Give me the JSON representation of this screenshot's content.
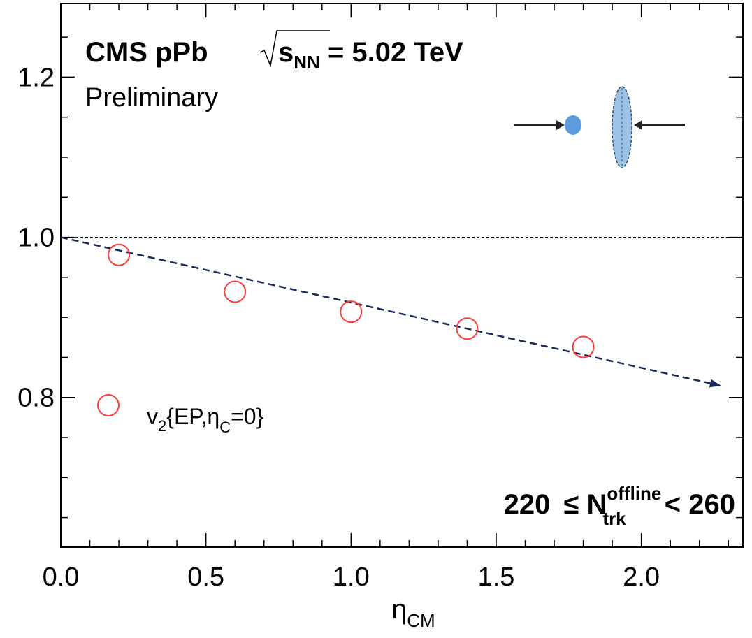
{
  "chart_data": {
    "type": "scatter",
    "title_parts": [
      "CMS pPb",
      "s",
      "NN",
      "= 5.02 TeV"
    ],
    "subtitle": "Preliminary",
    "xlabel_parts": [
      "η",
      "CM"
    ],
    "annotation_parts": [
      "220",
      "≤ N",
      "offline",
      "trk",
      "< 260"
    ],
    "series": [
      {
        "name_parts": [
          "v",
          "2",
          "{EP,η",
          "C",
          "=0}"
        ],
        "color": "#ff3b3b",
        "x": [
          0.2,
          0.6,
          1.0,
          1.4,
          1.8
        ],
        "values": [
          0.978,
          0.932,
          0.907,
          0.886,
          0.863
        ]
      }
    ],
    "reference_line": 1.0,
    "trend_arrow": {
      "color": "#1a2a5a",
      "x": [
        0.0,
        2.27
      ],
      "y": [
        1.0,
        0.815
      ]
    },
    "xlim": [
      0.0,
      2.35
    ],
    "ylim": [
      0.613,
      1.292
    ],
    "xticks": [
      {
        "value": 0,
        "label": "0.0"
      },
      0.5,
      {
        "value": 1,
        "label": "1.0"
      },
      1.5,
      {
        "value": 2,
        "label": "2.0"
      }
    ],
    "yticks": [
      0.8,
      {
        "value": 1,
        "label": "1.0"
      },
      1.2
    ],
    "xminorticks": [
      0.1,
      0.2,
      0.3,
      0.4,
      0.6,
      0.7,
      0.8,
      0.9,
      1.1,
      1.2,
      1.3,
      1.4,
      1.6,
      1.7,
      1.8,
      1.9,
      2.1,
      2.2,
      2.3
    ],
    "yminorticks": [
      0.65,
      0.7,
      0.75,
      0.85,
      0.9,
      0.95,
      1.05,
      1.1,
      1.15,
      1.25
    ]
  }
}
